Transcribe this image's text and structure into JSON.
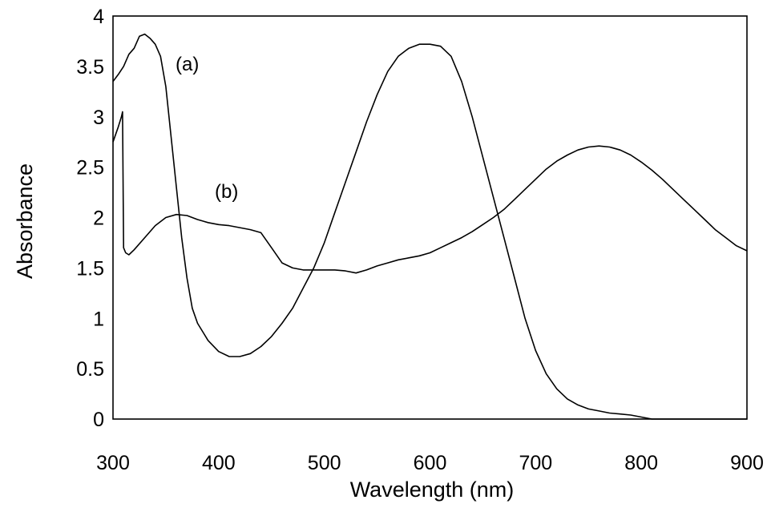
{
  "chart_data": {
    "type": "line",
    "xlabel": "Wavelength (nm)",
    "ylabel": "Absorbance",
    "xlim": [
      300,
      900
    ],
    "ylim": [
      0,
      4
    ],
    "xticks": [
      "300",
      "400",
      "500",
      "600",
      "700",
      "800",
      "900"
    ],
    "yticks": [
      "0",
      "0.5",
      "1",
      "1.5",
      "2",
      "2.5",
      "3",
      "3.5",
      "4"
    ],
    "grid": false,
    "legend": "none",
    "line_color": "#000000",
    "series": [
      {
        "name": "(a)",
        "x": [
          300,
          305,
          310,
          315,
          320,
          325,
          330,
          335,
          340,
          345,
          350,
          355,
          360,
          365,
          370,
          375,
          380,
          390,
          400,
          410,
          420,
          430,
          440,
          450,
          460,
          470,
          480,
          490,
          500,
          510,
          520,
          530,
          540,
          550,
          560,
          570,
          580,
          590,
          600,
          610,
          620,
          630,
          640,
          650,
          660,
          670,
          680,
          690,
          700,
          710,
          720,
          730,
          740,
          750,
          760,
          770,
          780,
          790,
          800,
          810,
          820,
          830,
          840,
          850,
          860,
          870,
          880,
          890,
          900
        ],
        "y": [
          3.35,
          3.42,
          3.5,
          3.62,
          3.68,
          3.8,
          3.82,
          3.78,
          3.72,
          3.6,
          3.3,
          2.8,
          2.3,
          1.8,
          1.4,
          1.1,
          0.95,
          0.78,
          0.67,
          0.62,
          0.62,
          0.65,
          0.72,
          0.82,
          0.95,
          1.1,
          1.3,
          1.5,
          1.75,
          2.05,
          2.35,
          2.65,
          2.95,
          3.22,
          3.45,
          3.6,
          3.68,
          3.72,
          3.72,
          3.7,
          3.6,
          3.35,
          3.0,
          2.6,
          2.2,
          1.8,
          1.4,
          1.0,
          0.68,
          0.45,
          0.3,
          0.2,
          0.14,
          0.1,
          0.08,
          0.06,
          0.05,
          0.04,
          0.02,
          0.0,
          0.0,
          0.0,
          0.0,
          0.0,
          0.0,
          0.0,
          0.0,
          0.0,
          0.0
        ]
      },
      {
        "name": "(b)",
        "x": [
          300,
          305,
          308,
          309,
          310,
          312,
          315,
          320,
          330,
          340,
          350,
          360,
          370,
          380,
          390,
          400,
          410,
          420,
          430,
          440,
          450,
          460,
          470,
          480,
          490,
          500,
          510,
          520,
          530,
          540,
          550,
          560,
          570,
          580,
          590,
          600,
          610,
          620,
          630,
          640,
          650,
          660,
          670,
          680,
          690,
          700,
          710,
          720,
          730,
          740,
          750,
          760,
          770,
          780,
          790,
          800,
          810,
          820,
          830,
          840,
          850,
          860,
          870,
          880,
          890,
          900
        ],
        "y": [
          2.75,
          2.9,
          3.0,
          3.05,
          1.7,
          1.65,
          1.63,
          1.68,
          1.8,
          1.92,
          2.0,
          2.03,
          2.02,
          1.98,
          1.95,
          1.93,
          1.92,
          1.9,
          1.88,
          1.85,
          1.7,
          1.55,
          1.5,
          1.48,
          1.48,
          1.48,
          1.48,
          1.47,
          1.45,
          1.48,
          1.52,
          1.55,
          1.58,
          1.6,
          1.62,
          1.65,
          1.7,
          1.75,
          1.8,
          1.86,
          1.93,
          2.0,
          2.08,
          2.18,
          2.28,
          2.38,
          2.48,
          2.56,
          2.62,
          2.67,
          2.7,
          2.71,
          2.7,
          2.67,
          2.62,
          2.55,
          2.47,
          2.38,
          2.28,
          2.18,
          2.08,
          1.98,
          1.88,
          1.8,
          1.72,
          1.67
        ]
      }
    ],
    "annotations": [
      "(a)",
      "(b)"
    ]
  }
}
